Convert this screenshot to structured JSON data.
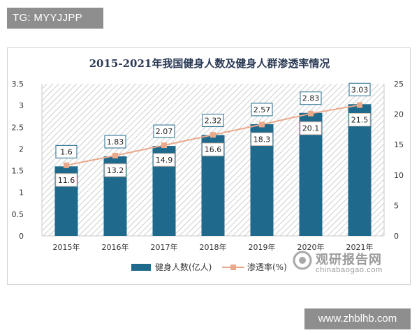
{
  "watermarks": {
    "top": "TG: MYYJJPP",
    "bottom": "www.zhblhb.com"
  },
  "source_logo": {
    "name": "观研报告网",
    "url": "chinabaogao.com"
  },
  "colors": {
    "bar": "#1f6a8c",
    "line": "#e9a98a",
    "title": "#2b3a55",
    "hatch": "#cfcfcf"
  },
  "chart_data": {
    "type": "bar",
    "title": "2015-2021年我国健身人数及健身人群渗透率情况",
    "categories": [
      "2015年",
      "2016年",
      "2017年",
      "2018年",
      "2019年",
      "2020年",
      "2021年"
    ],
    "series": [
      {
        "name": "健身人数(亿人)",
        "type": "bar",
        "axis": "left",
        "values": [
          1.6,
          1.83,
          2.07,
          2.32,
          2.57,
          2.83,
          3.03
        ],
        "labels": [
          "1.6",
          "1.83",
          "2.07",
          "2.32",
          "2.57",
          "2.83",
          "3.03"
        ]
      },
      {
        "name": "渗透率(%)",
        "type": "line",
        "axis": "right",
        "values": [
          11.6,
          13.2,
          14.9,
          16.6,
          18.3,
          20.1,
          21.5
        ],
        "labels": [
          "11.6",
          "13.2",
          "14.9",
          "16.6",
          "18.3",
          "20.1",
          "21.5"
        ]
      }
    ],
    "y_left": {
      "ylim": [
        0,
        3.5
      ],
      "ticks": [
        "0",
        "0.5",
        "1",
        "1.5",
        "2",
        "2.5",
        "3",
        "3.5"
      ]
    },
    "y_right": {
      "ylim": [
        0,
        25
      ],
      "ticks": [
        "0",
        "5",
        "10",
        "15",
        "20",
        "25"
      ]
    },
    "legend_position": "bottom",
    "grid": false
  }
}
